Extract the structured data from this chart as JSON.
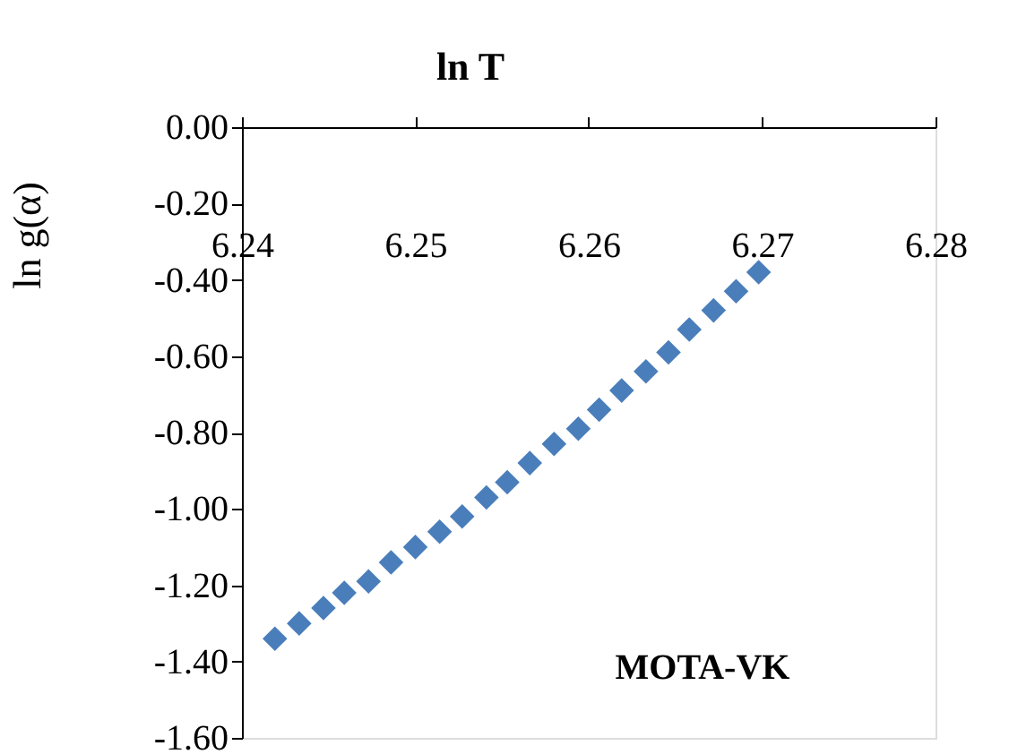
{
  "chart_data": {
    "type": "scatter",
    "xlabel": "ln T",
    "ylabel": "ln g(α)",
    "x": [
      6.2419,
      6.2433,
      6.2447,
      6.2459,
      6.2473,
      6.2486,
      6.25,
      6.2514,
      6.2527,
      6.2541,
      6.2553,
      6.2566,
      6.258,
      6.2594,
      6.2606,
      6.2619,
      6.2633,
      6.2646,
      6.2658,
      6.2672,
      6.2685,
      6.2698
    ],
    "series": [
      {
        "color": "#4a7ebb",
        "values": [
          -1.34,
          -1.3,
          -1.26,
          -1.22,
          -1.19,
          -1.14,
          -1.1,
          -1.06,
          -1.02,
          -0.97,
          -0.93,
          -0.88,
          -0.83,
          -0.79,
          -0.74,
          -0.69,
          -0.64,
          -0.59,
          -0.53,
          -0.48,
          -0.43,
          -0.38
        ]
      }
    ],
    "xlim": [
      6.24,
      6.28
    ],
    "xticks": [
      6.24,
      6.25,
      6.26,
      6.27,
      6.28
    ],
    "ylim": [
      -1.6,
      0
    ],
    "yticks": [
      {
        "value": 0,
        "label": "0.00"
      },
      {
        "value": -0.2,
        "label": "-0.20"
      },
      {
        "value": -0.4,
        "label": "-0.40"
      },
      {
        "value": -0.6,
        "label": "-0.60"
      },
      {
        "value": -0.8,
        "label": "-0.80"
      },
      {
        "value": -1.0,
        "label": "-1.00"
      },
      {
        "value": -1.2,
        "label": "-1.20"
      },
      {
        "value": -1.4,
        "label": "-1.40"
      },
      {
        "value": -1.6,
        "label": "-1.60"
      }
    ],
    "marker": "diamond",
    "grid": false,
    "annotations": [
      "MOTA-VK"
    ]
  }
}
